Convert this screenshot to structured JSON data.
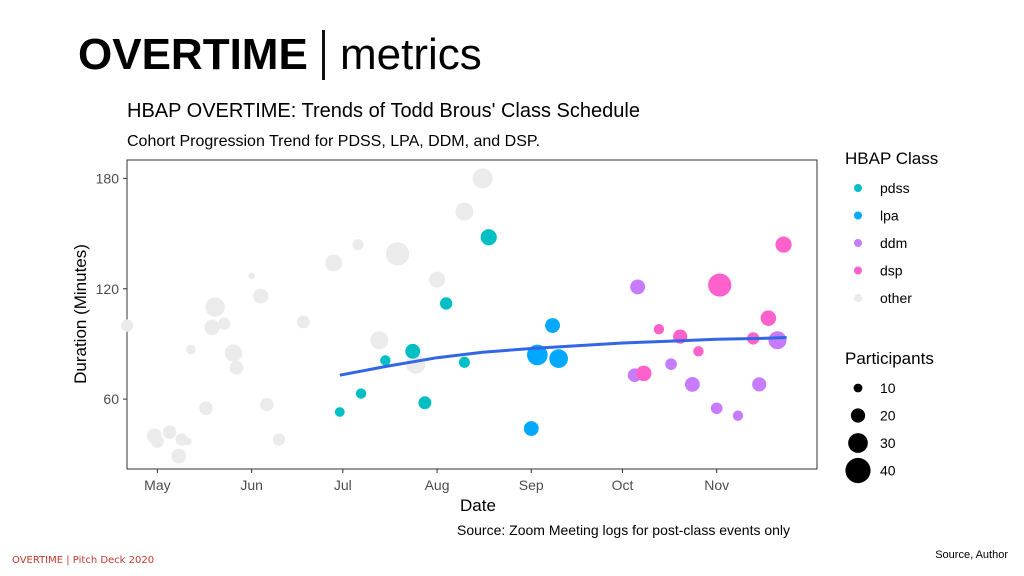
{
  "slide": {
    "header_bold": "OVERTIME",
    "header_light": "metrics",
    "footer_left": "OVERTIME |  Pitch Deck 2020",
    "footer_right": "Source, Author",
    "accent_color": "#c0392b"
  },
  "chart_data": {
    "type": "scatter",
    "title": "HBAP OVERTIME: Trends of Todd Brous' Class Schedule",
    "subtitle": "Cohort Progression Trend for PDSS, LPA, DDM, and DSP.",
    "caption": "Source: Zoom Meeting logs for post-class events only",
    "xlabel": "Date",
    "ylabel": "Duration (Minutes)",
    "x_unit": "day of year (Apr 15 = 105)",
    "xlim": [
      111,
      338
    ],
    "ylim": [
      22,
      190
    ],
    "x_ticks": [
      {
        "label": "May",
        "value": 121
      },
      {
        "label": "Jun",
        "value": 152
      },
      {
        "label": "Jul",
        "value": 182
      },
      {
        "label": "Aug",
        "value": 213
      },
      {
        "label": "Sep",
        "value": 244
      },
      {
        "label": "Oct",
        "value": 274
      },
      {
        "label": "Nov",
        "value": 305
      }
    ],
    "y_ticks": [
      60,
      120,
      180
    ],
    "class_legend_title": "HBAP Class",
    "size_legend_title": "Participants",
    "classes": [
      {
        "name": "pdss",
        "color": "#00BFC4"
      },
      {
        "name": "lpa",
        "color": "#00A9FF"
      },
      {
        "name": "ddm",
        "color": "#C77CFF"
      },
      {
        "name": "dsp",
        "color": "#FF61CC"
      },
      {
        "name": "other",
        "color": "#EBEBEB"
      }
    ],
    "size_legend": [
      10,
      20,
      30,
      40
    ],
    "trend": {
      "label": "loess trend",
      "color": "#3366E6",
      "points": [
        [
          181,
          73
        ],
        [
          197,
          78
        ],
        [
          213,
          82.5
        ],
        [
          228,
          85.5
        ],
        [
          244,
          87.5
        ],
        [
          259,
          89
        ],
        [
          274,
          90.5
        ],
        [
          289,
          91.5
        ],
        [
          305,
          92.5
        ],
        [
          320,
          93
        ],
        [
          328,
          93.5
        ]
      ]
    },
    "points": [
      {
        "x": 121,
        "y": 37,
        "size": 14,
        "class": "other"
      },
      {
        "x": 125,
        "y": 42,
        "size": 15,
        "class": "other"
      },
      {
        "x": 129,
        "y": 38,
        "size": 13,
        "class": "other"
      },
      {
        "x": 128,
        "y": 29,
        "size": 17,
        "class": "other"
      },
      {
        "x": 120,
        "y": 40,
        "size": 17,
        "class": "other"
      },
      {
        "x": 131,
        "y": 37,
        "size": 6,
        "class": "other"
      },
      {
        "x": 111,
        "y": 100,
        "size": 13,
        "class": "other"
      },
      {
        "x": 132,
        "y": 87,
        "size": 9,
        "class": "other"
      },
      {
        "x": 137,
        "y": 55,
        "size": 15,
        "class": "other"
      },
      {
        "x": 139,
        "y": 99,
        "size": 18,
        "class": "other"
      },
      {
        "x": 140,
        "y": 110,
        "size": 24,
        "class": "other"
      },
      {
        "x": 143,
        "y": 101,
        "size": 13,
        "class": "other"
      },
      {
        "x": 146,
        "y": 85,
        "size": 21,
        "class": "other"
      },
      {
        "x": 147,
        "y": 77,
        "size": 15,
        "class": "other"
      },
      {
        "x": 152,
        "y": 127,
        "size": 4,
        "class": "other"
      },
      {
        "x": 155,
        "y": 116,
        "size": 17,
        "class": "other"
      },
      {
        "x": 157,
        "y": 57,
        "size": 15,
        "class": "other"
      },
      {
        "x": 161,
        "y": 38,
        "size": 13,
        "class": "other"
      },
      {
        "x": 169,
        "y": 102,
        "size": 14,
        "class": "other"
      },
      {
        "x": 179,
        "y": 134,
        "size": 20,
        "class": "other"
      },
      {
        "x": 187,
        "y": 144,
        "size": 11,
        "class": "other"
      },
      {
        "x": 194,
        "y": 92,
        "size": 22,
        "class": "other"
      },
      {
        "x": 200,
        "y": 139,
        "size": 30,
        "class": "other"
      },
      {
        "x": 206,
        "y": 79,
        "size": 24,
        "class": "other"
      },
      {
        "x": 213,
        "y": 125,
        "size": 19,
        "class": "other"
      },
      {
        "x": 222,
        "y": 162,
        "size": 22,
        "class": "other"
      },
      {
        "x": 228,
        "y": 180,
        "size": 25,
        "class": "other"
      },
      {
        "x": 181,
        "y": 53,
        "size": 9,
        "class": "pdss"
      },
      {
        "x": 188,
        "y": 63,
        "size": 10,
        "class": "pdss"
      },
      {
        "x": 196,
        "y": 81,
        "size": 10,
        "class": "pdss"
      },
      {
        "x": 205,
        "y": 86,
        "size": 17,
        "class": "pdss"
      },
      {
        "x": 209,
        "y": 58,
        "size": 14,
        "class": "pdss"
      },
      {
        "x": 216,
        "y": 112,
        "size": 13,
        "class": "pdss"
      },
      {
        "x": 222,
        "y": 80,
        "size": 11,
        "class": "pdss"
      },
      {
        "x": 230,
        "y": 148,
        "size": 19,
        "class": "pdss"
      },
      {
        "x": 244,
        "y": 44,
        "size": 17,
        "class": "lpa"
      },
      {
        "x": 246,
        "y": 84,
        "size": 26,
        "class": "lpa"
      },
      {
        "x": 251,
        "y": 100,
        "size": 17,
        "class": "lpa"
      },
      {
        "x": 253,
        "y": 82,
        "size": 23,
        "class": "lpa"
      },
      {
        "x": 278,
        "y": 73,
        "size": 15,
        "class": "ddm"
      },
      {
        "x": 279,
        "y": 121,
        "size": 17,
        "class": "ddm"
      },
      {
        "x": 290,
        "y": 79,
        "size": 12,
        "class": "ddm"
      },
      {
        "x": 297,
        "y": 68,
        "size": 17,
        "class": "ddm"
      },
      {
        "x": 305,
        "y": 55,
        "size": 12,
        "class": "ddm"
      },
      {
        "x": 312,
        "y": 51,
        "size": 10,
        "class": "ddm"
      },
      {
        "x": 319,
        "y": 68,
        "size": 16,
        "class": "ddm"
      },
      {
        "x": 325,
        "y": 92,
        "size": 22,
        "class": "ddm"
      },
      {
        "x": 281,
        "y": 74,
        "size": 18,
        "class": "dsp"
      },
      {
        "x": 286,
        "y": 98,
        "size": 10,
        "class": "dsp"
      },
      {
        "x": 293,
        "y": 94,
        "size": 16,
        "class": "dsp"
      },
      {
        "x": 299,
        "y": 86,
        "size": 10,
        "class": "dsp"
      },
      {
        "x": 306,
        "y": 122,
        "size": 30,
        "class": "dsp"
      },
      {
        "x": 317,
        "y": 93,
        "size": 13,
        "class": "dsp"
      },
      {
        "x": 322,
        "y": 104,
        "size": 18,
        "class": "dsp"
      },
      {
        "x": 327,
        "y": 144,
        "size": 19,
        "class": "dsp"
      }
    ]
  }
}
